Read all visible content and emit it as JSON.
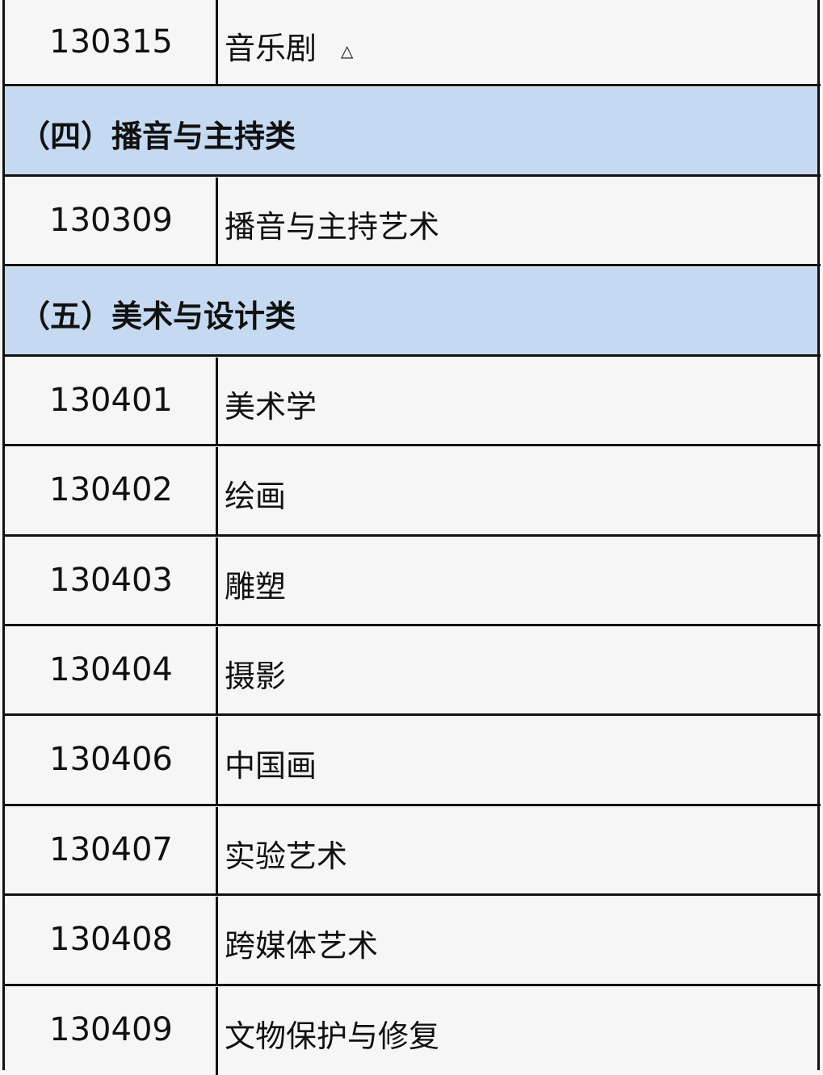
{
  "table": {
    "rows": [
      {
        "type": "item",
        "code": "130315",
        "name": "音乐剧",
        "mark": "△"
      },
      {
        "type": "category",
        "title": "（四）播音与主持类"
      },
      {
        "type": "item",
        "code": "130309",
        "name": "播音与主持艺术"
      },
      {
        "type": "category",
        "title": "（五）美术与设计类"
      },
      {
        "type": "item",
        "code": "130401",
        "name": "美术学"
      },
      {
        "type": "item",
        "code": "130402",
        "name": "绘画"
      },
      {
        "type": "item",
        "code": "130403",
        "name": "雕塑"
      },
      {
        "type": "item",
        "code": "130404",
        "name": "摄影"
      },
      {
        "type": "item",
        "code": "130406",
        "name": "中国画"
      },
      {
        "type": "item",
        "code": "130407",
        "name": "实验艺术"
      },
      {
        "type": "item",
        "code": "130408",
        "name": "跨媒体艺术"
      },
      {
        "type": "item",
        "code": "130409",
        "name": "文物保护与修复"
      }
    ],
    "header_color": "#c5d9f1"
  }
}
